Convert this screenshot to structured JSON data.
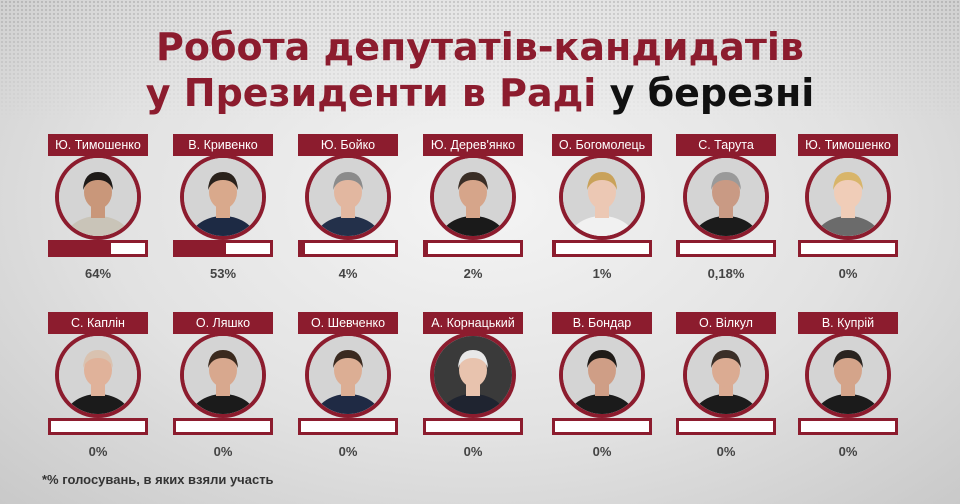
{
  "title": {
    "line1": "Робота депутатів-кандидатів",
    "line2_red": "у Президенти в Раді",
    "line2_black": "у березні"
  },
  "footnote": "*% голосувань, в яких взяли участь",
  "colors": {
    "accent": "#8c1c2e",
    "bar_empty": "#ffffff",
    "text": "#444444"
  },
  "chart_data": {
    "type": "bar",
    "categories": [
      "Ю. Тимошенко",
      "В. Кривенко",
      "Ю. Бойко",
      "Ю. Дерев'янко",
      "О. Богомолець",
      "С. Тарута",
      "Ю. Тимошенко",
      "С. Каплін",
      "О. Ляшко",
      "О. Шевченко",
      "А. Корнацький",
      "В. Бондар",
      "О. Вілкул",
      "В. Купрій"
    ],
    "values": [
      64,
      53,
      4,
      2,
      1,
      0.18,
      0,
      0,
      0,
      0,
      0,
      0,
      0,
      0
    ],
    "value_labels": [
      "64%",
      "53%",
      "4%",
      "2%",
      "1%",
      "0,18%",
      "0%",
      "0%",
      "0%",
      "0%",
      "0%",
      "0%",
      "0%",
      "0%"
    ],
    "ylim": [
      0,
      100
    ]
  }
}
